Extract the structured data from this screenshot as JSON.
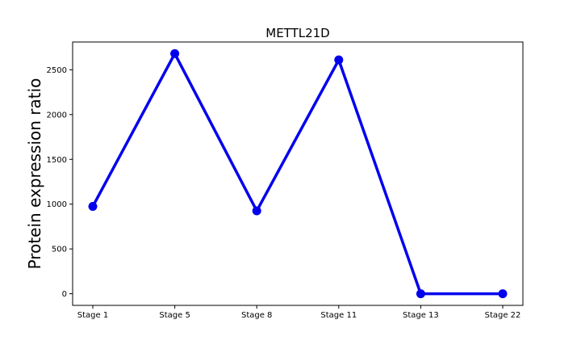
{
  "chart_data": {
    "type": "line",
    "title": "METTL21D",
    "xlabel": "",
    "ylabel": "Protein expression ratio",
    "categories": [
      "Stage 1",
      "Stage 5",
      "Stage 8",
      "Stage 11",
      "Stage 13",
      "Stage 22"
    ],
    "series": [
      {
        "values": [
          975,
          2680,
          925,
          2610,
          0,
          0
        ],
        "color": "#0000ee"
      }
    ],
    "ylim": [
      -130,
      2810
    ],
    "yticks": [
      0,
      500,
      1000,
      1500,
      2000,
      2500
    ],
    "grid": false,
    "legend": "none"
  }
}
